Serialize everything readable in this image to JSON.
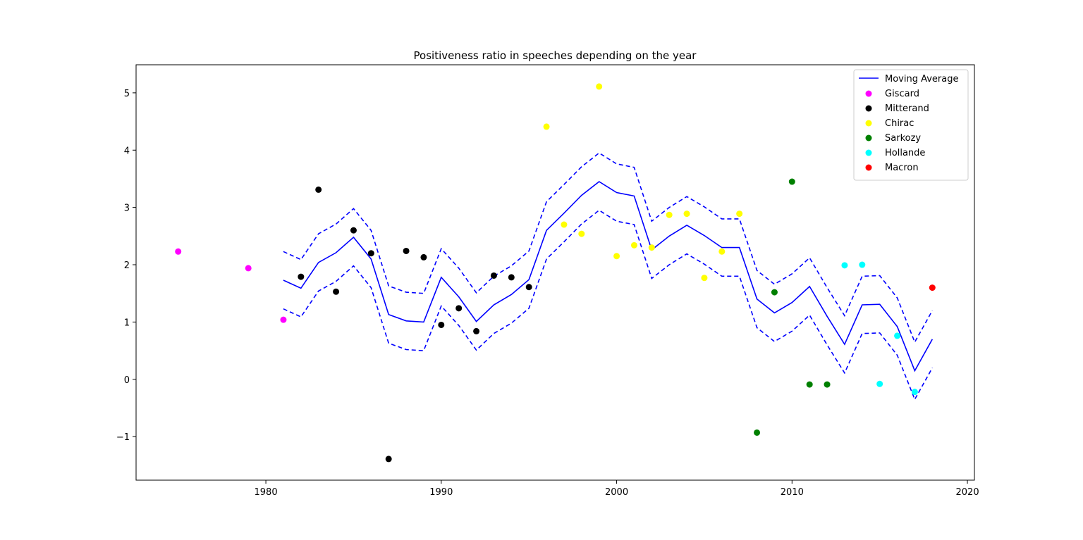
{
  "chart_data": {
    "type": "scatter",
    "title": "Positiveness ratio in speeches depending on the year",
    "xlabel": "",
    "ylabel": "",
    "xlim": [
      1972.6,
      2020.4
    ],
    "ylim": [
      -1.76,
      5.49
    ],
    "xticks": [
      1980,
      1990,
      2000,
      2010,
      2020
    ],
    "yticks": [
      -1,
      0,
      1,
      2,
      3,
      4,
      5
    ],
    "grid": false,
    "legend_position": "top-right",
    "moving_average": {
      "name": "Moving Average",
      "color": "#0000ff",
      "band_offset": 0.5,
      "x": [
        1981,
        1982,
        1983,
        1984,
        1985,
        1986,
        1987,
        1988,
        1989,
        1990,
        1991,
        1992,
        1993,
        1994,
        1995,
        1996,
        1997,
        1998,
        1999,
        2000,
        2001,
        2002,
        2003,
        2004,
        2005,
        2006,
        2007,
        2008,
        2009,
        2010,
        2011,
        2012,
        2013,
        2014,
        2015,
        2016,
        2017,
        2018
      ],
      "y": [
        1.73,
        1.59,
        2.04,
        2.21,
        2.48,
        2.1,
        1.13,
        1.02,
        1.0,
        1.78,
        1.44,
        1.01,
        1.3,
        1.48,
        1.74,
        2.6,
        2.9,
        3.21,
        3.45,
        3.26,
        3.2,
        2.26,
        2.5,
        2.69,
        2.51,
        2.3,
        2.3,
        1.4,
        1.16,
        1.34,
        1.62,
        1.1,
        0.61,
        1.3,
        1.31,
        0.92,
        0.15,
        0.7
      ]
    },
    "series": [
      {
        "name": "Giscard",
        "color": "#ff00ff",
        "points": [
          [
            1975,
            2.23
          ],
          [
            1979,
            1.94
          ],
          [
            1981,
            1.04
          ]
        ]
      },
      {
        "name": "Mitterand",
        "color": "#000000",
        "points": [
          [
            1982,
            1.79
          ],
          [
            1983,
            3.31
          ],
          [
            1984,
            1.53
          ],
          [
            1985,
            2.6
          ],
          [
            1986,
            2.2
          ],
          [
            1987,
            -1.39
          ],
          [
            1988,
            2.24
          ],
          [
            1989,
            2.13
          ],
          [
            1990,
            0.95
          ],
          [
            1991,
            1.24
          ],
          [
            1992,
            0.84
          ],
          [
            1993,
            1.81
          ],
          [
            1994,
            1.78
          ],
          [
            1995,
            1.61
          ]
        ]
      },
      {
        "name": "Chirac",
        "color": "#ffff00",
        "points": [
          [
            1996,
            4.41
          ],
          [
            1997,
            2.7
          ],
          [
            1998,
            2.54
          ],
          [
            1999,
            5.11
          ],
          [
            2000,
            2.15
          ],
          [
            2001,
            2.34
          ],
          [
            2002,
            2.3
          ],
          [
            2003,
            2.87
          ],
          [
            2004,
            2.89
          ],
          [
            2005,
            1.77
          ],
          [
            2006,
            2.23
          ],
          [
            2007,
            2.89
          ]
        ]
      },
      {
        "name": "Sarkozy",
        "color": "#008000",
        "points": [
          [
            2008,
            -0.93
          ],
          [
            2009,
            1.52
          ],
          [
            2010,
            3.45
          ],
          [
            2011,
            -0.09
          ],
          [
            2012,
            -0.09
          ]
        ]
      },
      {
        "name": "Hollande",
        "color": "#00ffff",
        "points": [
          [
            2013,
            1.99
          ],
          [
            2014,
            2.0
          ],
          [
            2015,
            -0.08
          ],
          [
            2016,
            0.76
          ],
          [
            2017,
            -0.22
          ]
        ]
      },
      {
        "name": "Macron",
        "color": "#ff0000",
        "points": [
          [
            2018,
            1.6
          ]
        ]
      }
    ]
  }
}
